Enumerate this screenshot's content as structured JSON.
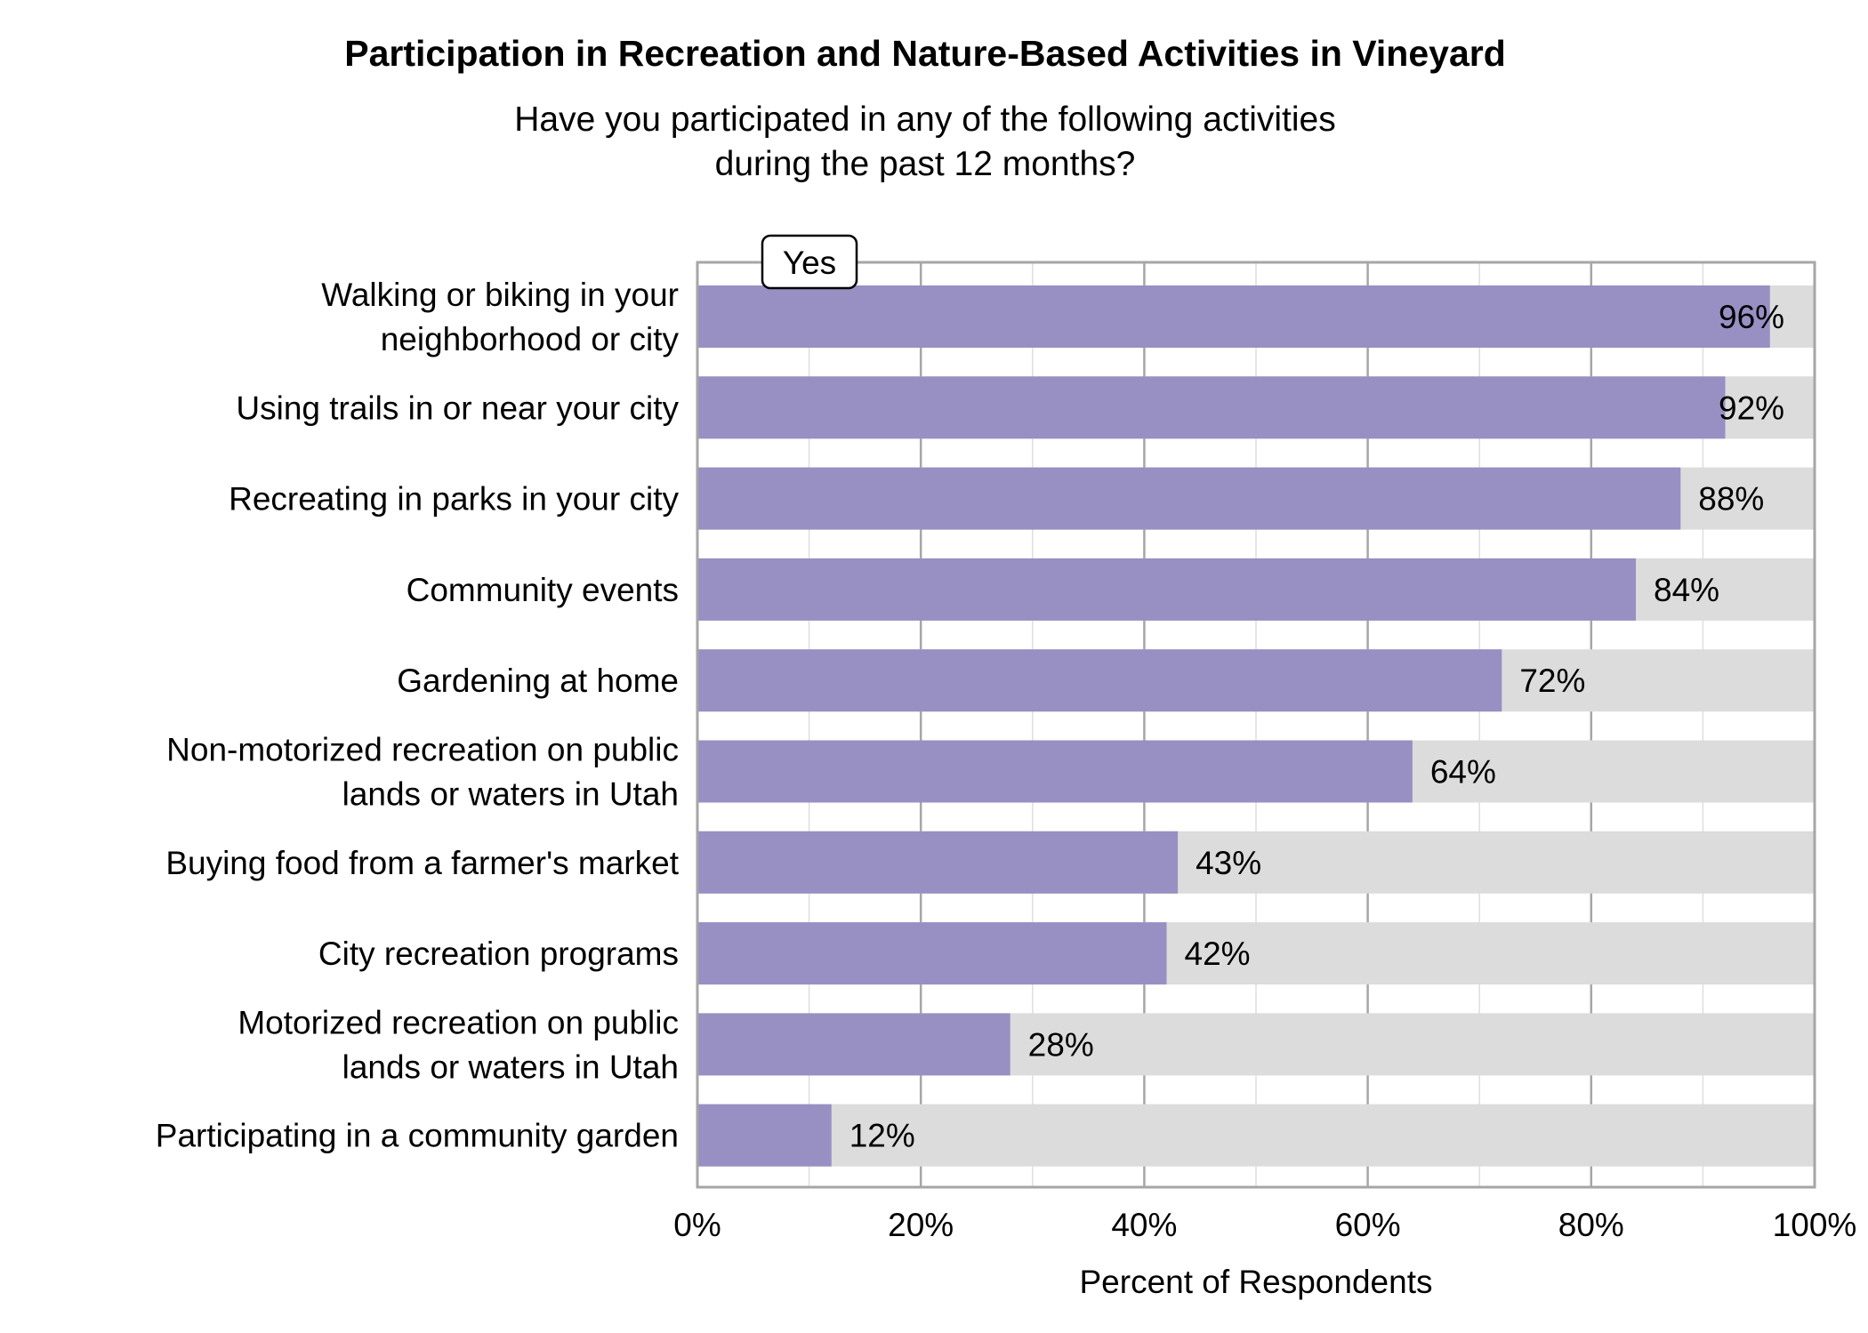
{
  "chart_data": {
    "type": "bar",
    "orientation": "horizontal",
    "stacked_background": true,
    "title": "Participation in Recreation and Nature-Based Activities in Vineyard",
    "subtitle": [
      "Have you participated in any of the following activities",
      "during the past 12 months?"
    ],
    "xlabel": "Percent of Respondents",
    "xlim": [
      0,
      100
    ],
    "xticks": [
      "0%",
      "20%",
      "40%",
      "60%",
      "80%",
      "100%"
    ],
    "grid": true,
    "legend": {
      "entries": [
        "Yes"
      ],
      "placement": "top-left"
    },
    "colors": {
      "yes": "#988fc3",
      "remainder": "#dcdcdc",
      "axis": "#a6a6a6"
    },
    "categories": [
      [
        "Walking or biking in your",
        "neighborhood or city"
      ],
      [
        "Using trails in or near your city"
      ],
      [
        "Recreating in parks in your city"
      ],
      [
        "Community events"
      ],
      [
        "Gardening at home"
      ],
      [
        "Non-motorized recreation on public",
        "lands or waters in Utah"
      ],
      [
        "Buying food from a farmer's market"
      ],
      [
        "City recreation programs"
      ],
      [
        "Motorized recreation on public",
        "lands or waters in Utah"
      ],
      [
        "Participating in a community garden"
      ]
    ],
    "series": [
      {
        "name": "Yes",
        "values": [
          96,
          92,
          88,
          84,
          72,
          64,
          43,
          42,
          28,
          12
        ]
      }
    ],
    "data_labels": [
      "96%",
      "92%",
      "88%",
      "84%",
      "72%",
      "64%",
      "43%",
      "42%",
      "28%",
      "12%"
    ]
  }
}
